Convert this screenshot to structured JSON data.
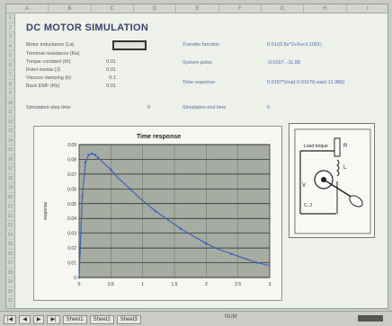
{
  "title": "DC MOTOR SIMULATION",
  "columns": [
    "A",
    "B",
    "C",
    "D",
    "E",
    "F",
    "G",
    "H",
    "I"
  ],
  "rows": [
    "1",
    "2",
    "3",
    "4",
    "5",
    "6",
    "7",
    "8",
    "9",
    "10",
    "11",
    "12",
    "13",
    "14",
    "15",
    "16",
    "17",
    "18",
    "19",
    "20",
    "21",
    "22",
    "23",
    "24",
    "25",
    "26",
    "27",
    "28",
    "29",
    "30",
    "31"
  ],
  "params": [
    {
      "label": "Motor inductance (La)",
      "value": ""
    },
    {
      "label": "Terminal resistance (Ra)",
      "value": ""
    },
    {
      "label": "Torque constant (Kt)",
      "value": "0.01"
    },
    {
      "label": "Rotor inertia (J)",
      "value": "0.01"
    },
    {
      "label": "Viscous damping (b)",
      "value": "0.1"
    },
    {
      "label": "Back EMF (Kb)",
      "value": "0.01"
    },
    {
      "label": "Simulation step time",
      "value": "0"
    }
  ],
  "results": [
    {
      "label": "Transfer function",
      "value": "0.01/(0.5s^2+6s+0.1001)"
    },
    {
      "label": "System poles",
      "value": "-0.0167, -11.98"
    },
    {
      "label": "Time response",
      "value": "0.0167*(exp(-0.0167t)-exp(-11.98t))"
    },
    {
      "label": "Simulation end time",
      "value": "0"
    }
  ],
  "chart_data": {
    "type": "line",
    "title": "Time response",
    "xlabel": "",
    "ylabel": "response",
    "ylim": [
      0,
      0.09
    ],
    "xlim": [
      0,
      3
    ],
    "yticks": [
      "0",
      "0.01",
      "0.02",
      "0.03",
      "0.04",
      "0.05",
      "0.06",
      "0.07",
      "0.08",
      "0.09"
    ],
    "xticks": [
      "0",
      "0.5",
      "1",
      "1.5",
      "2",
      "2.5",
      "3"
    ],
    "grid": true,
    "plot_bg": "#a7aca3",
    "line_color": "#3e63b8",
    "x": [
      0,
      0.05,
      0.1,
      0.15,
      0.2,
      0.25,
      0.3,
      0.4,
      0.5,
      0.6,
      0.8,
      1.0,
      1.2,
      1.4,
      1.6,
      1.8,
      2.0,
      2.2,
      2.4,
      2.6,
      2.8,
      3.0
    ],
    "y": [
      0,
      0.055,
      0.078,
      0.083,
      0.084,
      0.083,
      0.081,
      0.077,
      0.073,
      0.068,
      0.06,
      0.052,
      0.045,
      0.039,
      0.033,
      0.028,
      0.023,
      0.019,
      0.016,
      0.013,
      0.01,
      0.008
    ]
  },
  "diagram": {
    "labels": [
      "Load torque",
      "R",
      "L",
      "V",
      "C, J"
    ]
  },
  "statusbar": {
    "tabs": [
      "Sheet1",
      "Sheet2",
      "Sheet3"
    ],
    "center": "NUM"
  }
}
